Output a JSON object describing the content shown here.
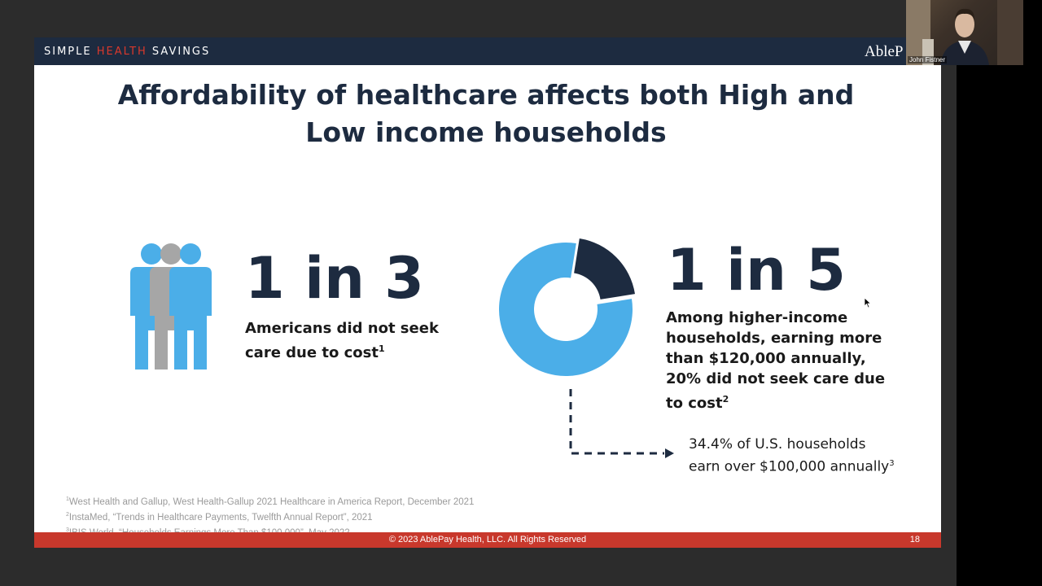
{
  "slide": {
    "brand_simple": "SIMPLE ",
    "brand_health": "HEALTH",
    "brand_savings": " SAVINGS",
    "header_logo": "AbleP",
    "title": "Affordability of healthcare affects both High and Low income households",
    "stat_left": {
      "big": "1 in 3",
      "desc": "Americans did not seek care due to cost",
      "sup": "1",
      "icon": "people-group-icon"
    },
    "stat_right": {
      "big": "1 in 5",
      "desc": "Among higher-income households, earning more than $120,000 annually, 20% did not seek care due to cost",
      "sup": "2",
      "icon": "donut-chart-icon",
      "highlighted_share": 0.2
    },
    "note": {
      "line1": "34.4% of U.S. households",
      "line2": "earn over $100,000 annually",
      "sup": "3"
    },
    "footnotes": [
      {
        "sup": "1",
        "text": "West Health and Gallup, West Health-Gallup 2021 Healthcare in America Report, December 2021"
      },
      {
        "sup": "2",
        "text": "InstaMed, “Trends in Healthcare Payments, Twelfth Annual Report”, 2021"
      },
      {
        "sup": "3",
        "text": "IBIS World, “Households Earnings More Than $100,000”, May 2022"
      }
    ],
    "footer": {
      "copyright": "© 2023 AblePay Health, LLC. All Rights Reserved",
      "page_number": "18"
    }
  },
  "webcam": {
    "participant_name": "John Fistner"
  },
  "colors": {
    "navy": "#1d2b40",
    "blue": "#4baee8",
    "gray": "#a6a6a6",
    "red": "#c8382c",
    "dark_bg": "#2c2c2c"
  }
}
